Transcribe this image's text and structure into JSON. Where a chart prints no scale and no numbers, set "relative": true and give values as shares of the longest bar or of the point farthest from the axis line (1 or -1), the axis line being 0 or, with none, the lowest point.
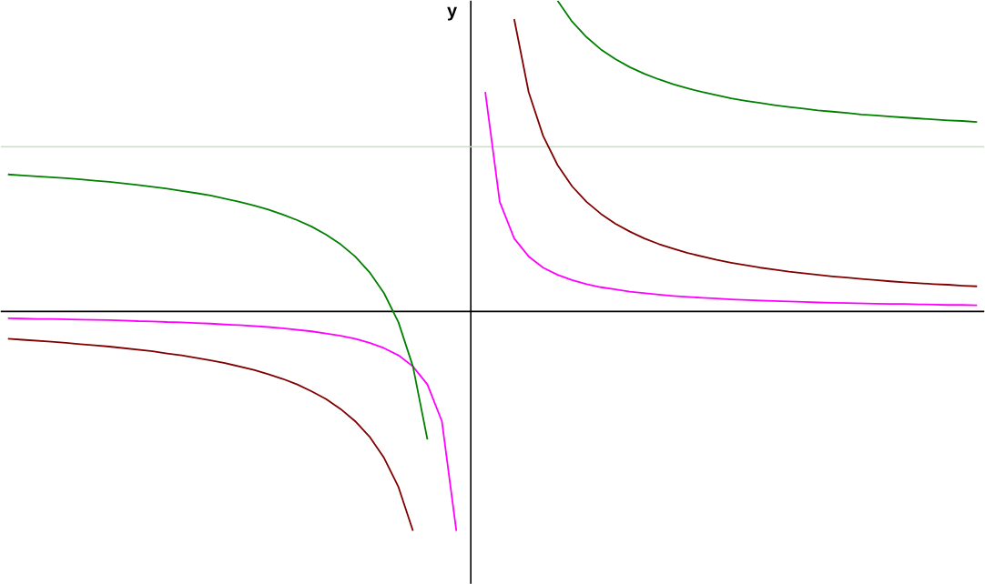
{
  "chart_data": {
    "type": "line",
    "relative": true,
    "ylabel": "y",
    "marker": "none",
    "line_style": "solid",
    "categories": [
      null,
      null,
      null,
      null,
      null,
      null,
      null,
      null,
      null,
      null,
      null,
      null,
      null,
      null,
      null,
      null,
      null,
      null,
      null,
      null,
      null,
      null,
      null,
      null,
      null,
      null,
      null,
      null,
      null,
      null,
      null,
      null,
      null,
      null,
      null,
      null,
      null,
      null,
      null,
      null,
      null,
      null,
      null,
      null,
      null,
      null,
      null,
      null,
      null,
      null,
      null,
      null,
      null,
      null,
      null,
      null,
      null,
      null,
      null,
      null,
      null,
      null,
      null,
      null,
      null,
      null,
      null,
      null
    ],
    "series": [
      {
        "color": "#800000",
        "values": [
          -0.088,
          -0.091,
          -0.094,
          -0.097,
          -0.101,
          -0.105,
          -0.109,
          -0.113,
          -0.118,
          -0.123,
          -0.128,
          -0.135,
          -0.141,
          -0.149,
          -0.157,
          -0.166,
          -0.177,
          -0.188,
          -0.202,
          -0.217,
          -0.235,
          -0.257,
          -0.282,
          -0.314,
          -0.353,
          -0.403,
          -0.471,
          -0.565,
          -0.706,
          null,
          null,
          null,
          null,
          null,
          null,
          null,
          null,
          null,
          null,
          null,
          null,
          null,
          null,
          null,
          null,
          null,
          null,
          null,
          null,
          null,
          null,
          null,
          null,
          null,
          null,
          null,
          null,
          null,
          null,
          null,
          null,
          null,
          null,
          null,
          null,
          null,
          null,
          null
        ]
      },
      {
        "color": "#800000",
        "values": [
          null,
          null,
          null,
          null,
          null,
          null,
          null,
          null,
          null,
          null,
          null,
          null,
          null,
          null,
          null,
          null,
          null,
          null,
          null,
          null,
          null,
          null,
          null,
          null,
          null,
          null,
          null,
          null,
          null,
          null,
          null,
          null,
          null,
          null,
          null,
          0.941,
          0.706,
          0.565,
          0.471,
          0.403,
          0.353,
          0.314,
          0.282,
          0.257,
          0.235,
          0.217,
          0.202,
          0.188,
          0.177,
          0.166,
          0.157,
          0.149,
          0.141,
          0.135,
          0.128,
          0.123,
          0.118,
          0.113,
          0.109,
          0.105,
          0.101,
          0.097,
          0.094,
          0.091,
          0.088,
          0.086,
          0.083,
          0.081
        ]
      },
      {
        "color": "#ff00ff",
        "values": [
          -0.022,
          -0.023,
          -0.024,
          -0.024,
          -0.025,
          -0.026,
          -0.027,
          -0.028,
          -0.029,
          -0.031,
          -0.032,
          -0.034,
          -0.035,
          -0.037,
          -0.039,
          -0.042,
          -0.044,
          -0.047,
          -0.05,
          -0.054,
          -0.059,
          -0.064,
          -0.071,
          -0.078,
          -0.088,
          -0.101,
          -0.118,
          -0.141,
          -0.177,
          -0.235,
          -0.353,
          -0.706,
          null,
          null,
          null,
          null,
          null,
          null,
          null,
          null,
          null,
          null,
          null,
          null,
          null,
          null,
          null,
          null,
          null,
          null,
          null,
          null,
          null,
          null,
          null,
          null,
          null,
          null,
          null,
          null,
          null,
          null,
          null,
          null,
          null,
          null,
          null,
          null
        ]
      },
      {
        "color": "#ff00ff",
        "values": [
          null,
          null,
          null,
          null,
          null,
          null,
          null,
          null,
          null,
          null,
          null,
          null,
          null,
          null,
          null,
          null,
          null,
          null,
          null,
          null,
          null,
          null,
          null,
          null,
          null,
          null,
          null,
          null,
          null,
          null,
          null,
          null,
          null,
          0.706,
          0.353,
          0.235,
          0.177,
          0.141,
          0.118,
          0.101,
          0.088,
          0.078,
          0.071,
          0.064,
          0.059,
          0.054,
          0.05,
          0.047,
          0.044,
          0.042,
          0.039,
          0.037,
          0.035,
          0.034,
          0.032,
          0.031,
          0.029,
          0.028,
          0.027,
          0.026,
          0.025,
          0.024,
          0.024,
          0.023,
          0.022,
          0.021,
          0.021,
          0.02
        ]
      },
      {
        "color": "#008000",
        "values": [
          0.441,
          0.438,
          0.435,
          0.432,
          0.429,
          0.425,
          0.421,
          0.417,
          0.412,
          0.407,
          0.401,
          0.395,
          0.388,
          0.381,
          0.373,
          0.363,
          0.353,
          0.341,
          0.328,
          0.312,
          0.294,
          0.273,
          0.247,
          0.216,
          0.177,
          0.126,
          0.059,
          -0.035,
          -0.177,
          -0.412,
          null,
          null,
          null,
          null,
          null,
          null,
          null,
          null,
          null,
          null,
          null,
          null,
          null,
          null,
          null,
          null,
          null,
          null,
          null,
          null,
          null,
          null,
          null,
          null,
          null,
          null,
          null,
          null,
          null,
          null,
          null,
          null,
          null,
          null,
          null,
          null,
          null,
          null
        ]
      },
      {
        "color": "#008000",
        "values": [
          null,
          null,
          null,
          null,
          null,
          null,
          null,
          null,
          null,
          null,
          null,
          null,
          null,
          null,
          null,
          null,
          null,
          null,
          null,
          null,
          null,
          null,
          null,
          null,
          null,
          null,
          null,
          null,
          null,
          null,
          null,
          null,
          null,
          null,
          null,
          null,
          null,
          null,
          1.0,
          0.933,
          0.883,
          0.843,
          0.812,
          0.786,
          0.765,
          0.747,
          0.731,
          0.718,
          0.706,
          0.696,
          0.686,
          0.678,
          0.671,
          0.664,
          0.658,
          0.653,
          0.647,
          0.643,
          0.639,
          0.634,
          0.631,
          0.627,
          0.624,
          0.621,
          0.618,
          0.615,
          0.613,
          0.61
        ]
      }
    ],
    "ref_lines": [
      {
        "axis": "y",
        "value": 0.53,
        "color": "#c0e0c0"
      }
    ]
  }
}
